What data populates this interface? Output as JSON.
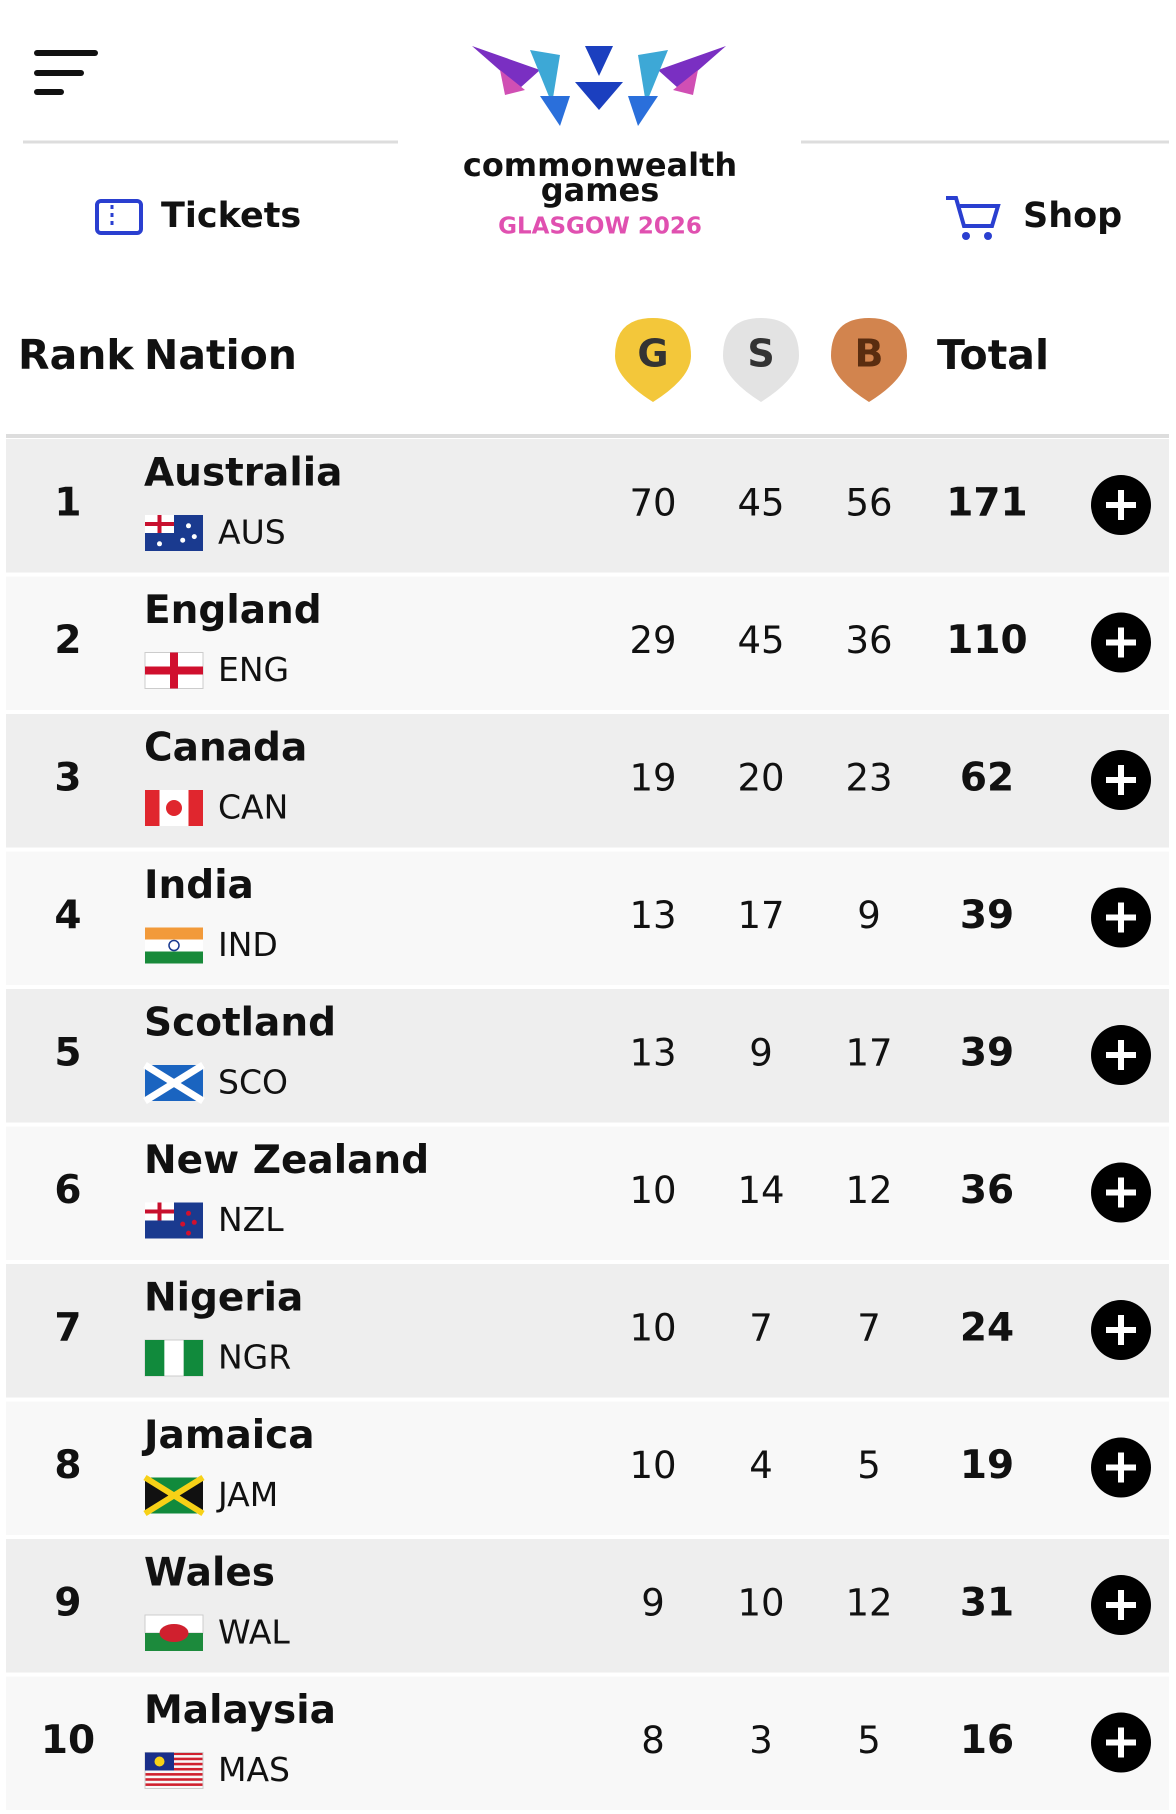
{
  "header": {
    "tickets": "Tickets",
    "logo_line1": "commonwealth",
    "logo_line2": "games",
    "logo_line3": "GLASGOW 2026",
    "shop": "Shop"
  },
  "table": {
    "columns": [
      "Rank",
      "Nation",
      "G",
      "S",
      "B",
      "Total"
    ],
    "rows": [
      {
        "rank": 1,
        "nation": "Australia",
        "code": "AUS",
        "gold": 70,
        "silver": 45,
        "bronze": 56,
        "total": 171
      },
      {
        "rank": 2,
        "nation": "England",
        "code": "ENG",
        "gold": 29,
        "silver": 45,
        "bronze": 36,
        "total": 110
      },
      {
        "rank": 3,
        "nation": "Canada",
        "code": "CAN",
        "gold": 19,
        "silver": 20,
        "bronze": 23,
        "total": 62
      },
      {
        "rank": 4,
        "nation": "India",
        "code": "IND",
        "gold": 13,
        "silver": 17,
        "bronze": 9,
        "total": 39
      },
      {
        "rank": 5,
        "nation": "Scotland",
        "code": "SCO",
        "gold": 13,
        "silver": 9,
        "bronze": 17,
        "total": 39
      },
      {
        "rank": 6,
        "nation": "New Zealand",
        "code": "NZL",
        "gold": 10,
        "silver": 14,
        "bronze": 12,
        "total": 36
      },
      {
        "rank": 7,
        "nation": "Nigeria",
        "code": "NGR",
        "gold": 10,
        "silver": 7,
        "bronze": 7,
        "total": 24
      },
      {
        "rank": 8,
        "nation": "Jamaica",
        "code": "JAM",
        "gold": 10,
        "silver": 4,
        "bronze": 5,
        "total": 19
      },
      {
        "rank": 9,
        "nation": "Wales",
        "code": "WAL",
        "gold": 9,
        "silver": 10,
        "bronze": 12,
        "total": 31
      },
      {
        "rank": 10,
        "nation": "Malaysia",
        "code": "MAS",
        "gold": 8,
        "silver": 3,
        "bronze": 5,
        "total": 16
      }
    ]
  }
}
